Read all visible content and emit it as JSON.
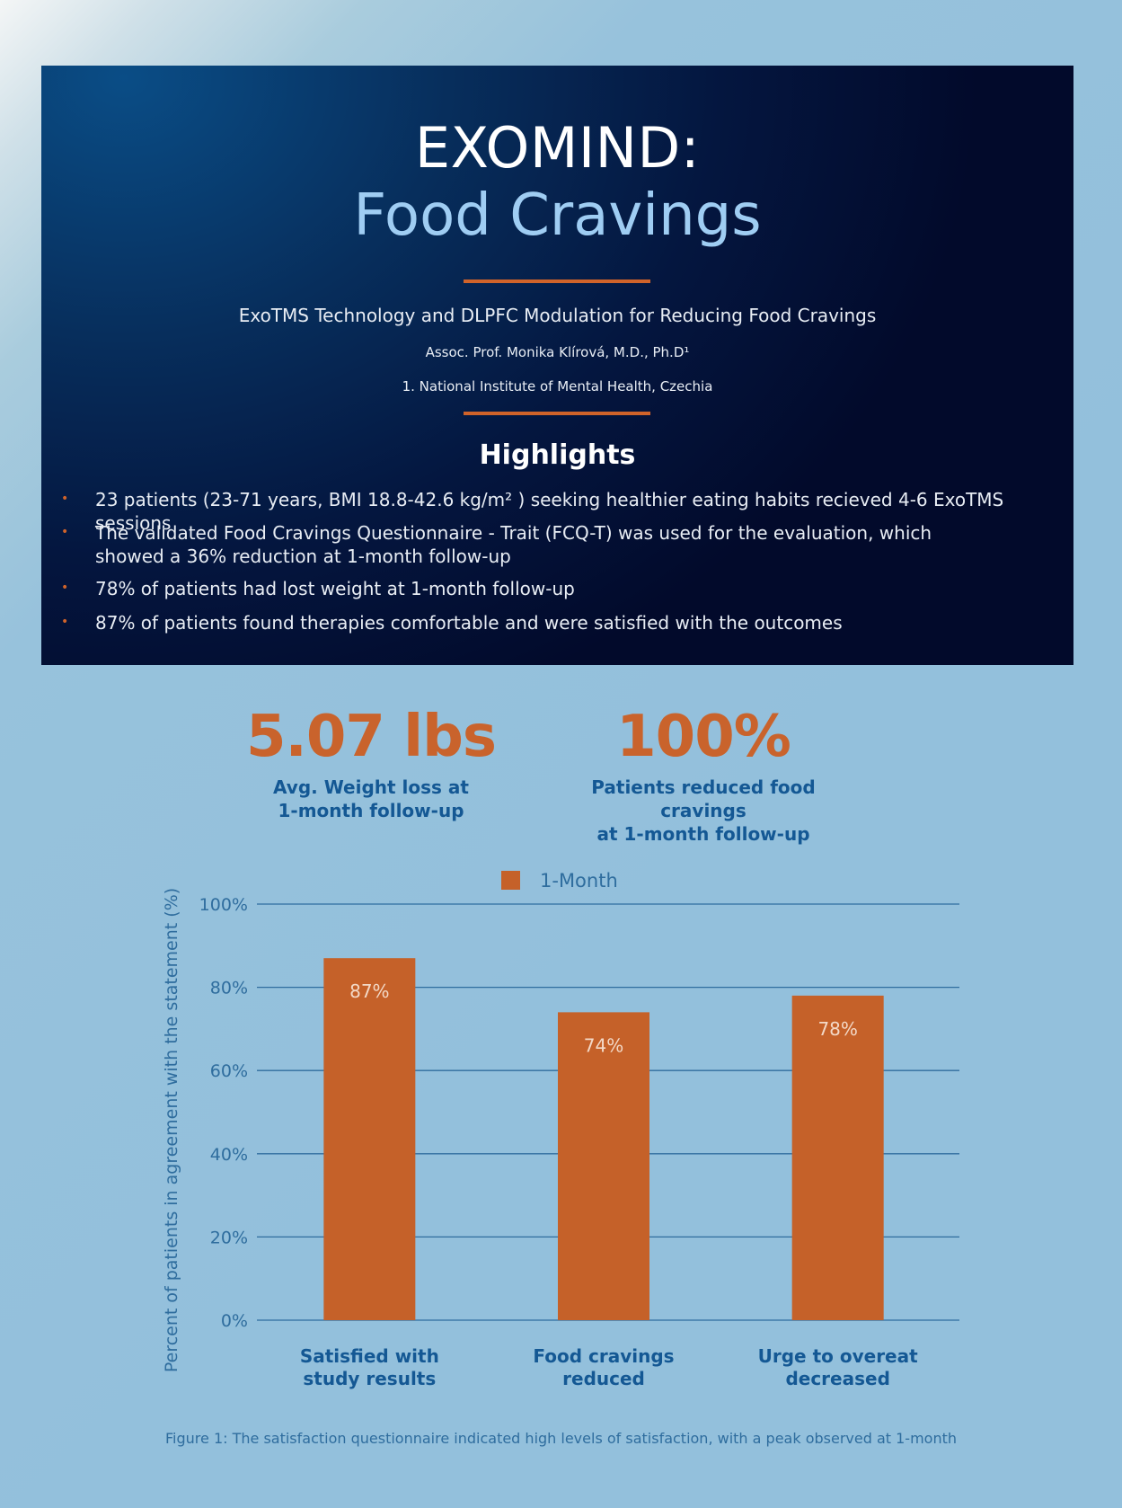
{
  "header": {
    "title_line1": "EXOMIND:",
    "title_line2": "Food Cravings",
    "subtitle": "ExoTMS Technology and DLPFC Modulation for Reducing Food Cravings",
    "author": "Assoc. Prof. Monika Klírová, M.D., Ph.D¹",
    "affiliation": "1. National Institute of Mental Health, Czechia"
  },
  "highlights": {
    "title": "Highlights",
    "items": [
      "23 patients  (23-71 years, BMI 18.8-42.6 kg/m² ) seeking healthier eating habits recieved 4-6 ExoTMS sessions",
      "The validated Food Cravings Questionnaire - Trait (FCQ-T) was used for the evaluation, which showed a 36% reduction at 1-month follow-up",
      "78% of patients had lost weight at 1-month follow-up",
      "87% of patients found therapies comfortable and were satisfied with the outcomes"
    ]
  },
  "stats": [
    {
      "value": "5.07 lbs",
      "label_line1": "Avg. Weight loss at",
      "label_line2": "1-month follow-up"
    },
    {
      "value": "100%",
      "label_line1": "Patients reduced food cravings",
      "label_line2": "at 1-month follow-up"
    }
  ],
  "colors": {
    "bar": "#c56129",
    "grid": "#2f6d9e",
    "tick": "#2f6d9e",
    "category": "#145894",
    "value_label": "#f3d9c7"
  },
  "chart_data": {
    "type": "bar",
    "categories": [
      [
        "Satisfied with",
        "study results"
      ],
      [
        "Food cravings",
        "reduced"
      ],
      [
        "Urge to overeat",
        "decreased"
      ]
    ],
    "series": [
      {
        "name": "1-Month",
        "values": [
          87,
          74,
          78
        ],
        "labels": [
          "87%",
          "74%",
          "78%"
        ]
      }
    ],
    "ylabel": "Percent of patients in agreement with the statement (%)",
    "xlabel": "",
    "ylim": [
      0,
      100
    ],
    "yticks": [
      0,
      20,
      40,
      60,
      80,
      100
    ],
    "ytick_labels": [
      "0%",
      "20%",
      "40%",
      "60%",
      "80%",
      "100%"
    ],
    "grid": true,
    "legend_position": "top-center"
  },
  "caption": "Figure 1: The satisfaction questionnaire indicated high levels of satisfaction, with a peak observed at 1-month"
}
